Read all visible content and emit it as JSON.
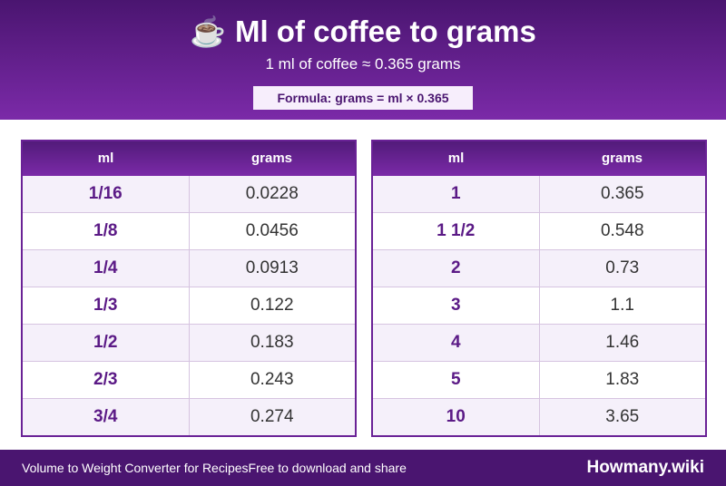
{
  "header": {
    "icon": "coffee-cup-icon",
    "icon_glyph": "☕",
    "title": "Ml of coffee to grams",
    "subtitle": "1 ml of coffee ≈ 0.365 grams",
    "formula": "Formula: grams = ml × 0.365"
  },
  "tables": [
    {
      "col_ml": "ml",
      "col_grams": "grams",
      "rows": [
        {
          "ml": "1/16",
          "grams": "0.0228"
        },
        {
          "ml": "1/8",
          "grams": "0.0456"
        },
        {
          "ml": "1/4",
          "grams": "0.0913"
        },
        {
          "ml": "1/3",
          "grams": "0.122"
        },
        {
          "ml": "1/2",
          "grams": "0.183"
        },
        {
          "ml": "2/3",
          "grams": "0.243"
        },
        {
          "ml": "3/4",
          "grams": "0.274"
        }
      ]
    },
    {
      "col_ml": "ml",
      "col_grams": "grams",
      "rows": [
        {
          "ml": "1",
          "grams": "0.365"
        },
        {
          "ml": "1 1/2",
          "grams": "0.548"
        },
        {
          "ml": "2",
          "grams": "0.73"
        },
        {
          "ml": "3",
          "grams": "1.1"
        },
        {
          "ml": "4",
          "grams": "1.46"
        },
        {
          "ml": "5",
          "grams": "1.83"
        },
        {
          "ml": "10",
          "grams": "3.65"
        }
      ]
    }
  ],
  "footer": {
    "left_text": "Volume to Weight Converter for RecipesFree to download and share",
    "brand": "Howmany.wiki"
  },
  "colors": {
    "primary": "#6a2296",
    "header_dark": "#4a1570",
    "row_alt": "#f5f0fa"
  }
}
